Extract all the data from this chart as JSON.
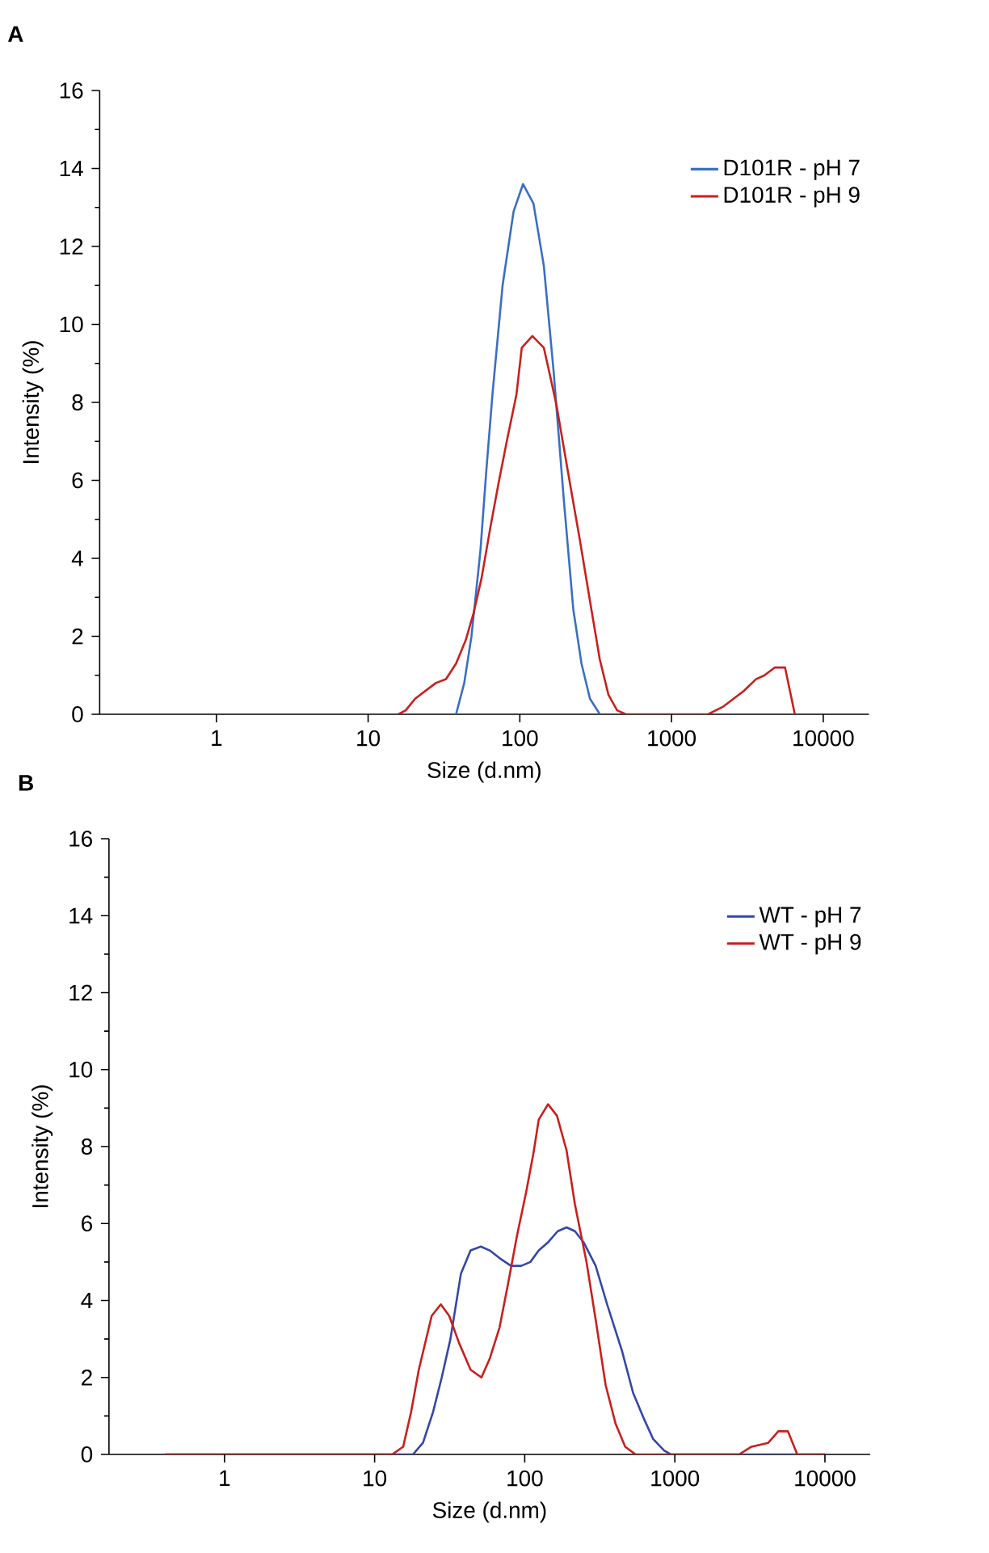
{
  "chart_data": [
    {
      "type": "line",
      "title": "A",
      "xlabel": "Size (d.nm)",
      "ylabel": "Intensity (%)",
      "log": "x",
      "xlim": [
        0.17,
        20000
      ],
      "ylim": [
        0,
        16
      ],
      "xticks": [
        1,
        10,
        100,
        1000,
        10000
      ],
      "yticks": [
        0,
        2,
        4,
        6,
        8,
        10,
        12,
        14,
        16
      ],
      "legend": "top right",
      "line_style": "solid",
      "series": [
        {
          "name": "D101R - pH 7",
          "color": "#3a6fc4",
          "x": [
            38,
            43,
            48,
            55,
            60,
            66,
            77,
            91,
            105,
            123,
            144,
            167,
            195,
            225,
            255,
            290,
            337
          ],
          "values": [
            0,
            0.8,
            2,
            4.2,
            6.2,
            8.2,
            11.0,
            12.9,
            13.6,
            13.1,
            11.5,
            8.8,
            5.5,
            2.7,
            1.3,
            0.4,
            0
          ]
        },
        {
          "name": "D101R - pH 9",
          "color": "#c8201e",
          "x": [
            15.8,
            17.7,
            20.4,
            27.9,
            32.6,
            38,
            44,
            49.6,
            56,
            64,
            73,
            83,
            95,
            103,
            121,
            144,
            160,
            175,
            208,
            248,
            296,
            337,
            384,
            438,
            500,
            1740,
            2200,
            3000,
            3600,
            4100,
            4800,
            5600,
            6500
          ],
          "values": [
            0,
            0.1,
            0.4,
            0.8,
            0.9,
            1.3,
            1.9,
            2.6,
            3.5,
            4.8,
            6.0,
            7.1,
            8.2,
            9.4,
            9.7,
            9.4,
            8.6,
            7.9,
            6.2,
            4.5,
            2.7,
            1.4,
            0.5,
            0.1,
            0,
            0,
            0.2,
            0.6,
            0.9,
            1.0,
            1.2,
            1.2,
            0
          ]
        }
      ]
    },
    {
      "type": "line",
      "title": "B",
      "xlabel": "Size (d.nm)",
      "ylabel": "Intensity (%)",
      "log": "x",
      "xlim": [
        0.17,
        20000
      ],
      "ylim": [
        0,
        16
      ],
      "xticks": [
        1,
        10,
        100,
        1000,
        10000
      ],
      "yticks": [
        0,
        2,
        4,
        6,
        8,
        10,
        12,
        14,
        16
      ],
      "legend": "top right",
      "line_style": "solid",
      "series": [
        {
          "name": "WT - pH 7",
          "color": "#3447a8",
          "x": [
            0.4,
            18,
            21,
            24.5,
            28,
            32,
            37.6,
            43.6,
            51,
            58.5,
            68,
            81,
            94.8,
            109,
            124,
            142,
            166,
            190,
            216,
            248,
            297,
            354,
            444,
            527,
            627,
            717,
            848,
            940,
            10000
          ],
          "values": [
            0,
            0,
            0.3,
            1.1,
            2.0,
            3.0,
            4.7,
            5.3,
            5.4,
            5.3,
            5.1,
            4.9,
            4.9,
            5.0,
            5.3,
            5.5,
            5.8,
            5.9,
            5.8,
            5.5,
            4.9,
            3.9,
            2.7,
            1.6,
            0.9,
            0.4,
            0.1,
            0,
            0
          ]
        },
        {
          "name": "WT - pH 9",
          "color": "#c8201e",
          "x": [
            0.4,
            13.1,
            15.5,
            17.5,
            19.7,
            24,
            27.6,
            31.4,
            36.5,
            43.6,
            51.5,
            58.6,
            68,
            78,
            89,
            102,
            114,
            124,
            143,
            164,
            190,
            216,
            258,
            297,
            346,
            403,
            467,
            548,
            2680,
            3240,
            4190,
            4890,
            5670,
            6540,
            10000
          ],
          "values": [
            0,
            0,
            0.2,
            1.1,
            2.2,
            3.6,
            3.9,
            3.6,
            2.9,
            2.2,
            2.0,
            2.5,
            3.3,
            4.5,
            5.7,
            6.8,
            7.8,
            8.7,
            9.1,
            8.8,
            7.9,
            6.5,
            5.0,
            3.5,
            1.8,
            0.8,
            0.2,
            0,
            0,
            0.2,
            0.3,
            0.6,
            0.6,
            0,
            0
          ]
        }
      ]
    }
  ]
}
